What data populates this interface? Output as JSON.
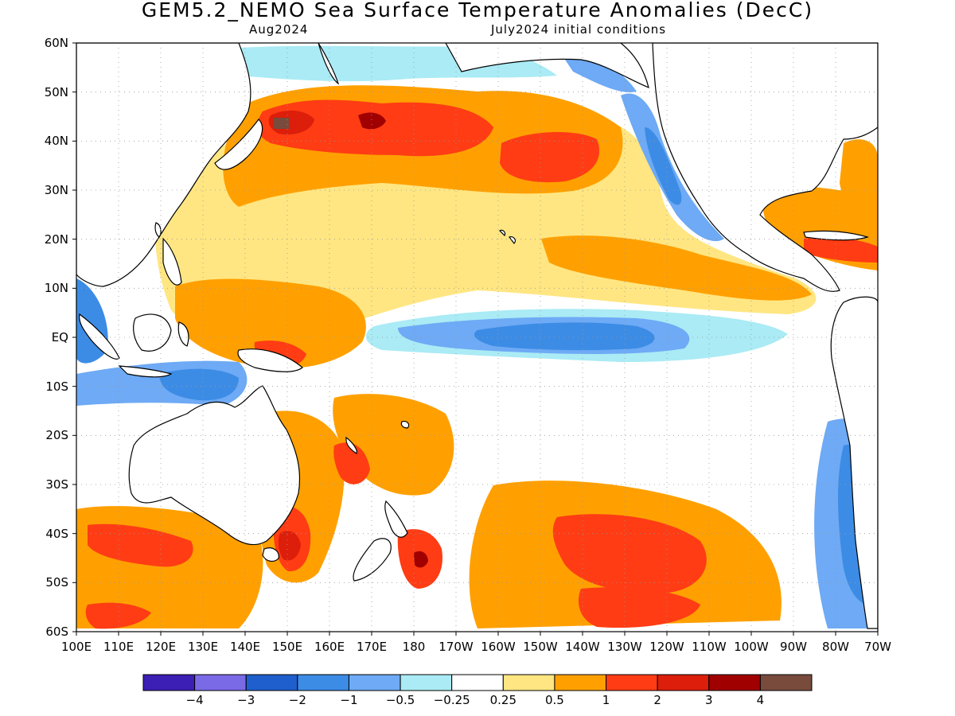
{
  "title": "GEM5.2_NEMO Sea Surface Temperature Anomalies (DecC)",
  "subtitle_left": "Aug2024",
  "subtitle_right": "July2024 initial conditions",
  "lat_labels": [
    "60N",
    "50N",
    "40N",
    "30N",
    "20N",
    "10N",
    "EQ",
    "10S",
    "20S",
    "30S",
    "40S",
    "50S",
    "60S"
  ],
  "lon_labels": [
    "100E",
    "110E",
    "120E",
    "130E",
    "140E",
    "150E",
    "160E",
    "170E",
    "180",
    "170W",
    "160W",
    "150W",
    "140W",
    "130W",
    "120W",
    "110W",
    "100W",
    "90W",
    "80W",
    "70W"
  ],
  "colorbar": {
    "colors": [
      "#3c1fb4",
      "#7a6ae6",
      "#1f5fcd",
      "#3c8ce6",
      "#6eaaf5",
      "#aaebf5",
      "#ffffff",
      "#ffe682",
      "#ffa000",
      "#ff3c14",
      "#dc1e0a",
      "#a00000",
      "#784b3c"
    ],
    "labels": [
      "-4",
      "-3",
      "-2",
      "-1",
      "-0.5",
      "-0.25",
      "0.25",
      "0.5",
      "1",
      "2",
      "3",
      "4"
    ]
  },
  "colors": {
    "ocean_neutral": "#ffffff",
    "light_positive": "#ffe682",
    "moderate_positive": "#ffa000",
    "strong_positive": "#ff3c14",
    "stronger_positive": "#dc1e0a",
    "strongest_positive": "#a00000",
    "extreme_positive": "#784b3c",
    "light_negative": "#aaebf5",
    "moderate_negative": "#6eaaf5",
    "strong_negative": "#3c8ce6",
    "stronger_negative": "#1f5fcd",
    "coastline": "#000000",
    "grid": "#999999"
  }
}
